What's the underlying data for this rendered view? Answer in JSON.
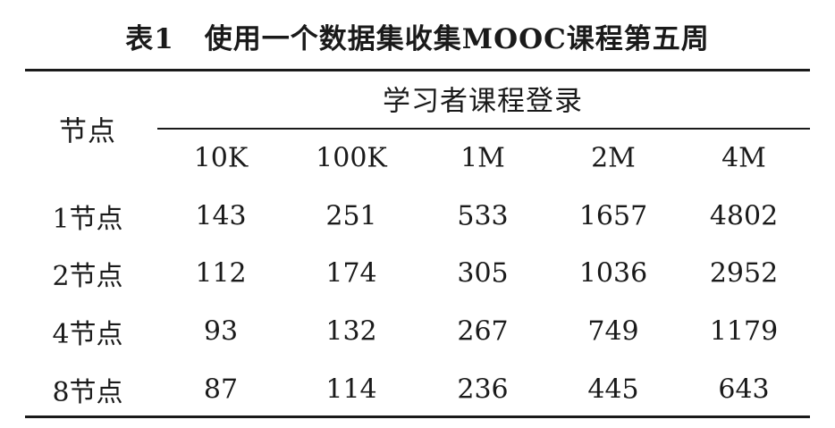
{
  "caption": {
    "label": "表1",
    "title": "使用一个数据集收集MOOC课程第五周"
  },
  "table": {
    "row_header_label": "节点",
    "group_header": "学习者课程登录",
    "columns": [
      "10K",
      "100K",
      "1M",
      "2M",
      "4M"
    ],
    "rows": [
      {
        "label": "1节点",
        "values": [
          "143",
          "251",
          "533",
          "1657",
          "4802"
        ]
      },
      {
        "label": "2节点",
        "values": [
          "112",
          "174",
          "305",
          "1036",
          "2952"
        ]
      },
      {
        "label": "4节点",
        "values": [
          "93",
          "132",
          "267",
          "749",
          "1179"
        ]
      },
      {
        "label": "8节点",
        "values": [
          "87",
          "114",
          "236",
          "445",
          "643"
        ]
      }
    ]
  }
}
